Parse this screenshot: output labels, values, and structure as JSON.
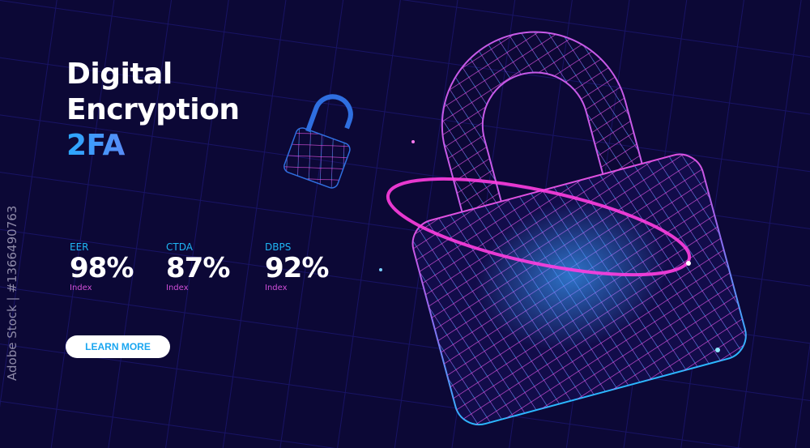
{
  "hero": {
    "title_line1": "Digital",
    "title_line2": "Encryption",
    "title_line3": "2FA"
  },
  "stats": [
    {
      "label": "EER",
      "value": "98%",
      "sub": "Index"
    },
    {
      "label": "CTDA",
      "value": "87%",
      "sub": "Index"
    },
    {
      "label": "DBPS",
      "value": "92%",
      "sub": "Index"
    }
  ],
  "cta": {
    "label": "LEARN MORE"
  },
  "watermark": {
    "text": "Adobe Stock | #1366490763"
  },
  "colors": {
    "background": "#0c0836",
    "accent_blue": "#1fb6f5",
    "accent_pink": "#ff3ee0",
    "accent_purple": "#d04fd8"
  },
  "icons": [
    "padlock-closed-icon",
    "padlock-open-icon"
  ]
}
